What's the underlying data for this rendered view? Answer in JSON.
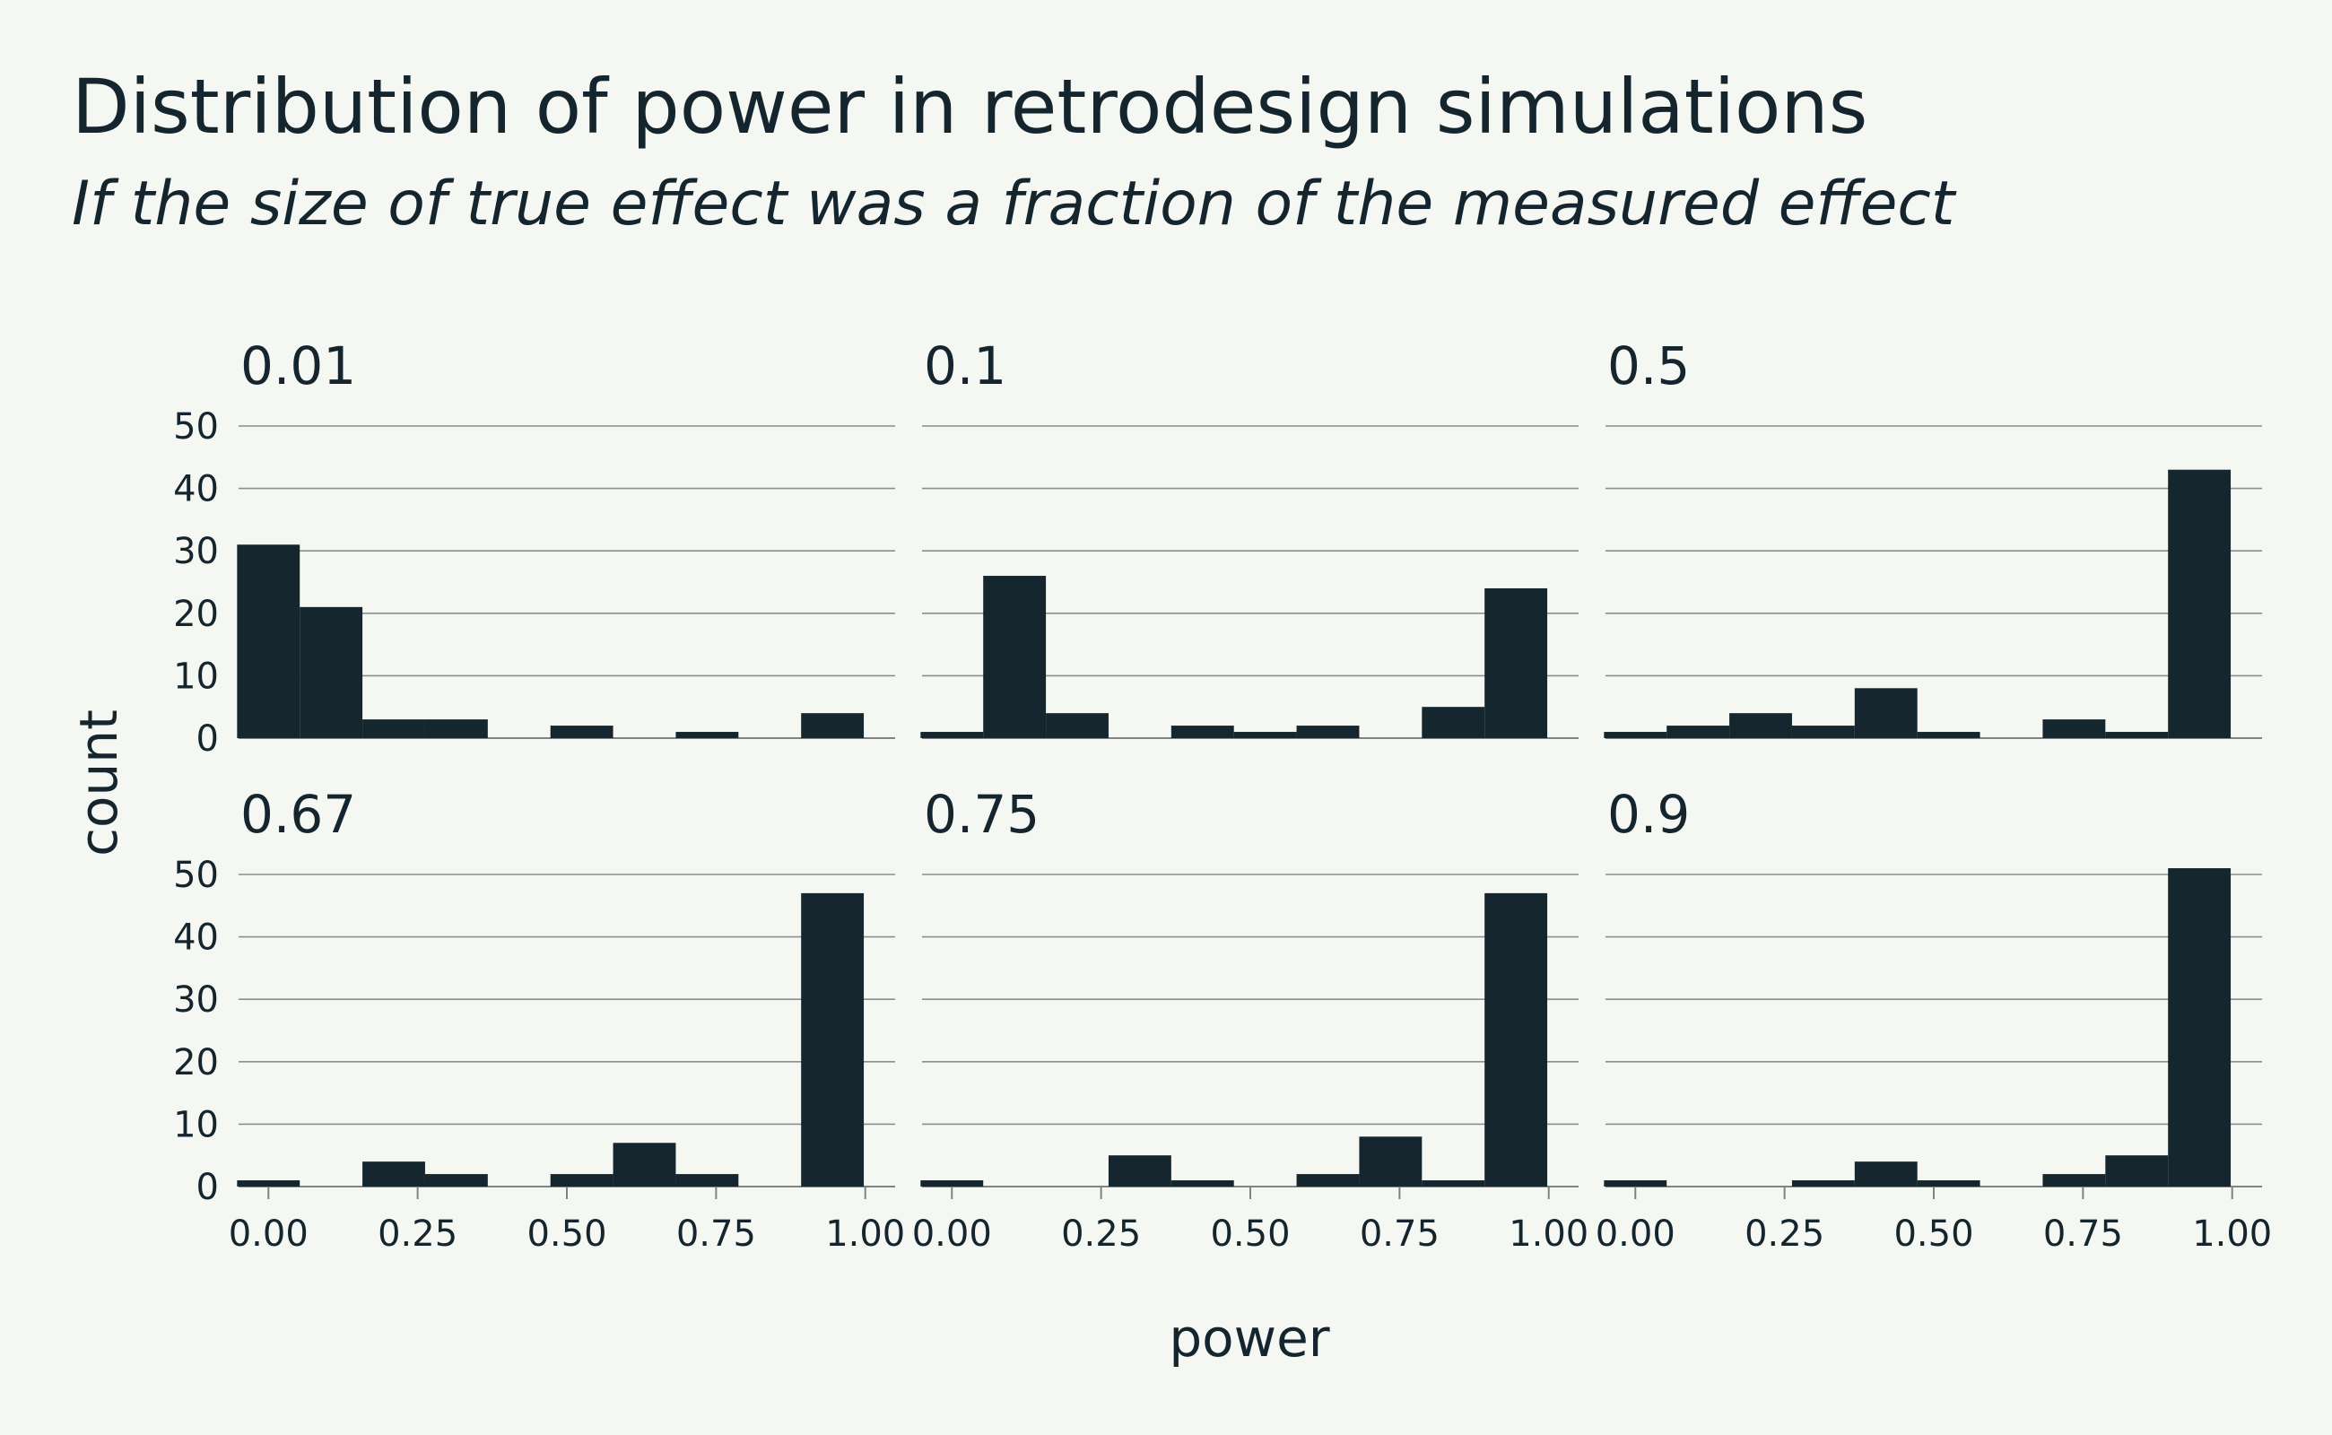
{
  "chart_data": {
    "type": "bar",
    "title": "Distribution of power in retrodesign simulations",
    "subtitle": "If the size of true effect was a fraction of the measured effect",
    "xlabel": "power",
    "ylabel": "count",
    "xlim": [
      -0.05,
      1.05
    ],
    "ylim": [
      0,
      50
    ],
    "x_ticks": [
      "0.00",
      "0.25",
      "0.50",
      "0.75",
      "1.00"
    ],
    "x_tick_values": [
      0,
      0.25,
      0.5,
      0.75,
      1.0
    ],
    "y_ticks": [
      "0",
      "10",
      "20",
      "30",
      "40",
      "50"
    ],
    "y_tick_values": [
      0,
      10,
      20,
      30,
      40,
      50
    ],
    "grid": "horizontal",
    "bin_width": 0.105,
    "bin_centers": [
      0.0,
      0.105,
      0.21,
      0.315,
      0.42,
      0.525,
      0.63,
      0.735,
      0.84,
      0.945
    ],
    "panels": [
      {
        "label": "0.01",
        "counts": [
          31,
          21,
          3,
          3,
          0,
          2,
          0,
          1,
          0,
          4
        ]
      },
      {
        "label": "0.1",
        "counts": [
          1,
          26,
          4,
          0,
          2,
          1,
          2,
          0,
          5,
          24
        ]
      },
      {
        "label": "0.5",
        "counts": [
          1,
          2,
          4,
          2,
          8,
          1,
          0,
          3,
          1,
          43
        ]
      },
      {
        "label": "0.67",
        "counts": [
          1,
          0,
          4,
          2,
          0,
          2,
          7,
          2,
          0,
          47
        ]
      },
      {
        "label": "0.75",
        "counts": [
          1,
          0,
          0,
          5,
          1,
          0,
          2,
          8,
          1,
          47
        ]
      },
      {
        "label": "0.9",
        "counts": [
          1,
          0,
          0,
          1,
          4,
          1,
          0,
          2,
          5,
          51
        ]
      }
    ],
    "bar_color": "#15262e"
  }
}
